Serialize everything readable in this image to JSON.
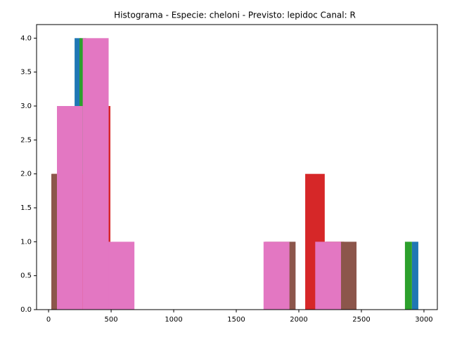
{
  "chart_data": {
    "type": "histogram",
    "title": "Histograma - Especie: cheloni - Previsto: lepidoc Canal: R",
    "series": [
      {
        "color": "#1f77b4",
        "bins": [
          208,
          262,
          2904,
          2955
        ],
        "values": [
          4,
          0,
          1
        ]
      },
      {
        "color": "#2ca02c",
        "bins": [
          247,
          300,
          2848,
          2904
        ],
        "values": [
          4,
          0,
          1
        ]
      },
      {
        "color": "#d62728",
        "bins": [
          27,
          183,
          338,
          494,
          650,
          805,
          961,
          1117,
          1272,
          1428,
          1584,
          1740,
          1895,
          2051,
          2207,
          2362
        ],
        "values": [
          2,
          2,
          3,
          0,
          0,
          0,
          0,
          0,
          0,
          0,
          0,
          0,
          0,
          2,
          1
        ]
      },
      {
        "color": "#8c564b",
        "bins": [
          22,
          266,
          510,
          754,
          998,
          1242,
          1486,
          1730,
          1974,
          2218,
          2461
        ],
        "values": [
          2,
          0,
          0,
          0,
          0,
          0,
          0,
          1,
          0,
          1
        ]
      },
      {
        "color": "#e377c2",
        "bins": [
          67,
          273,
          480,
          686,
          893,
          1099,
          1306,
          1512,
          1718,
          1925,
          2131,
          2337
        ],
        "values": [
          3,
          4,
          1,
          0,
          0,
          0,
          0,
          0,
          1,
          0,
          1
        ]
      }
    ],
    "xlim": [
      -96,
      3107
    ],
    "xticks": [
      0,
      500,
      1000,
      1500,
      2000,
      2500,
      3000
    ],
    "ylim": [
      0,
      4.2
    ],
    "yticks": [
      {
        "value": 0,
        "label": "0.0"
      },
      {
        "value": 0.5,
        "label": "0.5"
      },
      {
        "value": 1,
        "label": "1.0"
      },
      {
        "value": 1.5,
        "label": "1.5"
      },
      {
        "value": 2,
        "label": "2.0"
      },
      {
        "value": 2.5,
        "label": "2.5"
      },
      {
        "value": 3,
        "label": "3.0"
      },
      {
        "value": 3.5,
        "label": "3.5"
      },
      {
        "value": 4,
        "label": "4.0"
      }
    ]
  }
}
